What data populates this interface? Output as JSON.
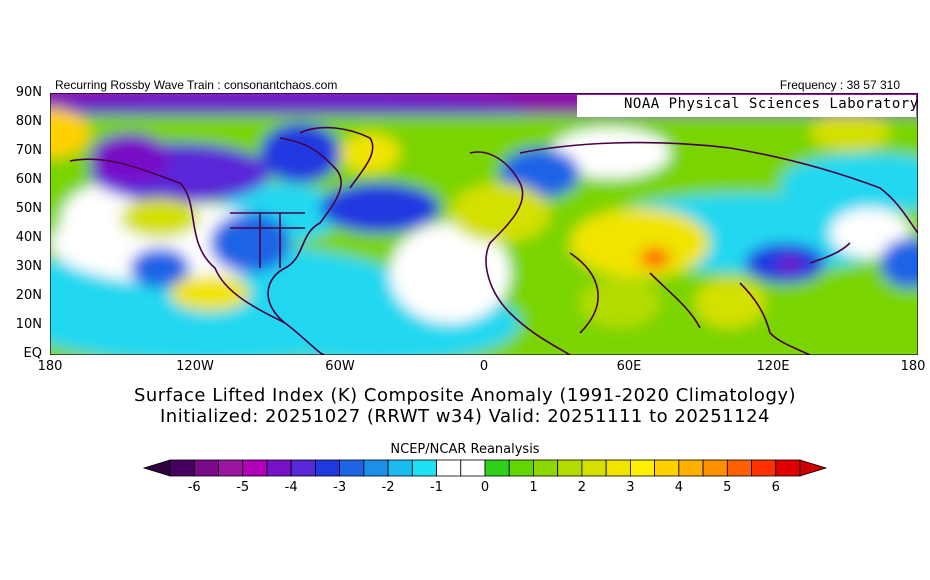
{
  "header": {
    "left": "Recurring Rossby Wave Train : consonantchaos.com",
    "right": "Frequency : 38 57 310"
  },
  "watermark": "NOAA Physical Sciences Laboratory",
  "map": {
    "lat_labels": [
      "90N",
      "80N",
      "70N",
      "60N",
      "50N",
      "40N",
      "30N",
      "20N",
      "10N",
      "EQ"
    ],
    "lon_labels": [
      "180",
      "120W",
      "60W",
      "0",
      "60E",
      "120E",
      "180"
    ],
    "field": "anomaly",
    "range": [
      -6,
      6
    ]
  },
  "title": {
    "line1": "Surface Lifted Index (K) Composite Anomaly (1991-2020 Climatology)",
    "line2": "Initialized: 20251027 (RRWT w34) Valid: 20251111 to 20251124"
  },
  "source": "NCEP/NCAR Reanalysis",
  "colorbar": {
    "labels": [
      "-6",
      "-5",
      "-4",
      "-3",
      "-2",
      "-1",
      "0",
      "1",
      "2",
      "3",
      "4",
      "5",
      "6"
    ],
    "colors": [
      "#480060",
      "#7a0a8a",
      "#9a14a0",
      "#b000b8",
      "#7810c8",
      "#5828d8",
      "#2038e0",
      "#1e64e6",
      "#1a90ea",
      "#1cbcf0",
      "#20e0f4",
      "#ffffff",
      "#ffffff",
      "#2ed01a",
      "#62d600",
      "#8cd800",
      "#b4dc00",
      "#d4e000",
      "#f0e400",
      "#fff000",
      "#ffd000",
      "#ffb000",
      "#ff9000",
      "#ff6000",
      "#ff3000",
      "#e00000"
    ]
  }
}
